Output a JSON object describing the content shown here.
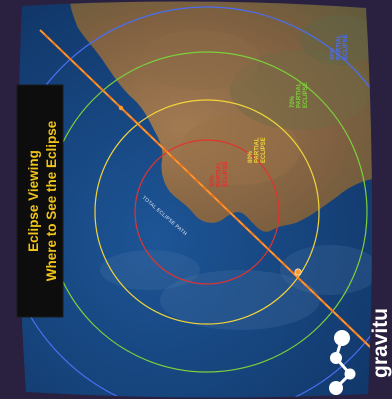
{
  "title_banner": {
    "line1": "Eclipse Viewing",
    "line2": "Where to See the Eclipse",
    "text_color": "#f0c419",
    "background": "#0d0d0d"
  },
  "brand": {
    "name": "gravitu",
    "color": "#ffffff"
  },
  "track_label": "TOTAL ECLIPSE PATH",
  "zones": [
    {
      "percent": "90%",
      "label1": "PARTIAL",
      "label2": "ECLIPSE",
      "color": "#e0332e"
    },
    {
      "percent": "80%",
      "label1": "PARTIAL",
      "label2": "ECLIPSE",
      "color": "#f2d43a"
    },
    {
      "percent": "70%",
      "label1": "PARTIAL",
      "label2": "ECLIPSE",
      "color": "#7ccf3a"
    },
    {
      "percent": "60%",
      "label1": "PARTIAL",
      "label2": "ECLIPSE",
      "color": "#4a6ef0"
    }
  ],
  "colors": {
    "ocean": "#16447e",
    "land": "#8a6a46",
    "frame": "#2a2140",
    "track": "#f07a1e"
  },
  "icons": [
    "satellite-icon"
  ]
}
